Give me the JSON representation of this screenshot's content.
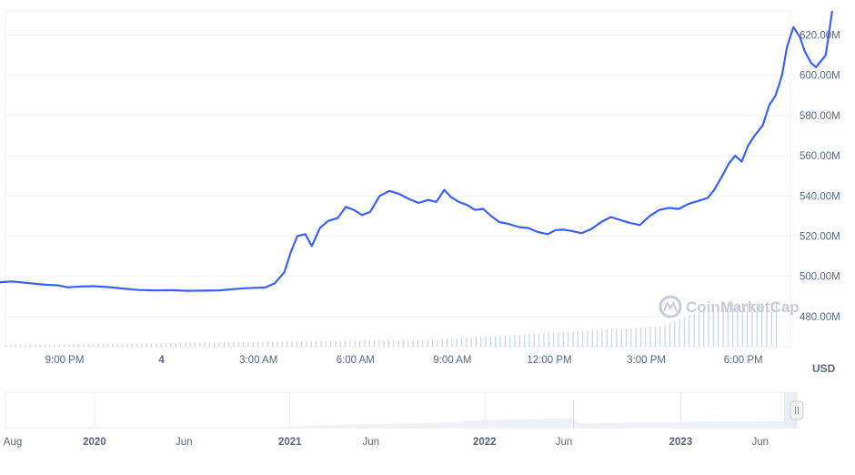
{
  "chart_data": {
    "type": "line",
    "title": "",
    "currency_label": "USD",
    "watermark": "CoinMarketCap",
    "accent_color": "#3861fb",
    "volume_color": "#cfd6e4",
    "ylim": [
      465,
      632
    ],
    "y_ticks": [
      "480.00M",
      "500.00M",
      "520.00M",
      "540.00M",
      "560.00M",
      "580.00M",
      "600.00M",
      "620.00M"
    ],
    "y_tick_values": [
      480,
      500,
      520,
      540,
      560,
      580,
      600,
      620
    ],
    "xlim": [
      -2.1,
      22.3
    ],
    "x_ticks": [
      {
        "label": "9:00 PM",
        "x": 0,
        "bold": false
      },
      {
        "label": "4",
        "x": 3,
        "bold": true
      },
      {
        "label": "3:00 AM",
        "x": 6,
        "bold": false
      },
      {
        "label": "6:00 AM",
        "x": 9,
        "bold": false
      },
      {
        "label": "9:00 AM",
        "x": 12,
        "bold": false
      },
      {
        "label": "12:00 PM",
        "x": 15,
        "bold": false
      },
      {
        "label": "3:00 PM",
        "x": 18,
        "bold": false
      },
      {
        "label": "6:00 PM",
        "x": 21,
        "bold": false
      }
    ],
    "series": [
      {
        "values": [
          [
            -2.1,
            497
          ],
          [
            -1.6,
            497.4
          ],
          [
            -1.1,
            496.6
          ],
          [
            -0.6,
            495.8
          ],
          [
            -0.2,
            495.5
          ],
          [
            0.1,
            494.5
          ],
          [
            0.5,
            494.9
          ],
          [
            0.9,
            495.1
          ],
          [
            1.4,
            494.6
          ],
          [
            1.8,
            493.9
          ],
          [
            2.3,
            493.2
          ],
          [
            2.8,
            493.0
          ],
          [
            3.3,
            493.1
          ],
          [
            3.8,
            492.8
          ],
          [
            4.3,
            492.9
          ],
          [
            4.8,
            493.0
          ],
          [
            5.2,
            493.6
          ],
          [
            5.6,
            494.1
          ],
          [
            5.9,
            494.3
          ],
          [
            6.2,
            494.4
          ],
          [
            6.5,
            496.5
          ],
          [
            6.8,
            502
          ],
          [
            7.0,
            512
          ],
          [
            7.2,
            520
          ],
          [
            7.45,
            521
          ],
          [
            7.65,
            515
          ],
          [
            7.9,
            524
          ],
          [
            8.15,
            527.5
          ],
          [
            8.45,
            529
          ],
          [
            8.7,
            534.5
          ],
          [
            8.95,
            533
          ],
          [
            9.2,
            530.5
          ],
          [
            9.45,
            532
          ],
          [
            9.75,
            540
          ],
          [
            10.05,
            542.5
          ],
          [
            10.35,
            541
          ],
          [
            10.65,
            538.5
          ],
          [
            10.95,
            536.5
          ],
          [
            11.25,
            538
          ],
          [
            11.5,
            537
          ],
          [
            11.75,
            543
          ],
          [
            11.95,
            539.5
          ],
          [
            12.2,
            537
          ],
          [
            12.45,
            535.5
          ],
          [
            12.7,
            533
          ],
          [
            12.95,
            533.5
          ],
          [
            13.2,
            530
          ],
          [
            13.45,
            527
          ],
          [
            13.75,
            526
          ],
          [
            14.05,
            524.5
          ],
          [
            14.35,
            524
          ],
          [
            14.65,
            522
          ],
          [
            14.95,
            521
          ],
          [
            15.2,
            523
          ],
          [
            15.45,
            523.2
          ],
          [
            15.7,
            522.5
          ],
          [
            16.0,
            521.5
          ],
          [
            16.3,
            523.5
          ],
          [
            16.6,
            527
          ],
          [
            16.9,
            529.5
          ],
          [
            17.2,
            528
          ],
          [
            17.5,
            526.5
          ],
          [
            17.8,
            525.5
          ],
          [
            18.1,
            530
          ],
          [
            18.4,
            533
          ],
          [
            18.7,
            534
          ],
          [
            19.0,
            533.5
          ],
          [
            19.3,
            536
          ],
          [
            19.6,
            537.5
          ],
          [
            19.9,
            539
          ],
          [
            20.1,
            543
          ],
          [
            20.35,
            550
          ],
          [
            20.55,
            556
          ],
          [
            20.75,
            560
          ],
          [
            20.95,
            557
          ],
          [
            21.15,
            565
          ],
          [
            21.35,
            570
          ],
          [
            21.6,
            575
          ],
          [
            21.8,
            585
          ],
          [
            22.0,
            590
          ],
          [
            22.2,
            600
          ],
          [
            22.35,
            614
          ],
          [
            22.55,
            624
          ],
          [
            22.75,
            619
          ],
          [
            22.9,
            612
          ],
          [
            23.1,
            606
          ],
          [
            23.25,
            604
          ],
          [
            23.4,
            607
          ],
          [
            23.55,
            610
          ],
          [
            23.75,
            632
          ]
        ]
      }
    ],
    "volume_bars": 160,
    "navigator": {
      "ticks": [
        {
          "label": "Aug",
          "x": 0.0,
          "bold": false
        },
        {
          "label": "2020",
          "x": 0.105,
          "bold": true
        },
        {
          "label": "Jun",
          "x": 0.22,
          "bold": false
        },
        {
          "label": "2021",
          "x": 0.356,
          "bold": true
        },
        {
          "label": "Jun",
          "x": 0.46,
          "bold": false
        },
        {
          "label": "2022",
          "x": 0.606,
          "bold": true
        },
        {
          "label": "Jun",
          "x": 0.708,
          "bold": false
        },
        {
          "label": "2023",
          "x": 0.858,
          "bold": true
        },
        {
          "label": "Jun",
          "x": 0.96,
          "bold": false
        }
      ]
    }
  }
}
